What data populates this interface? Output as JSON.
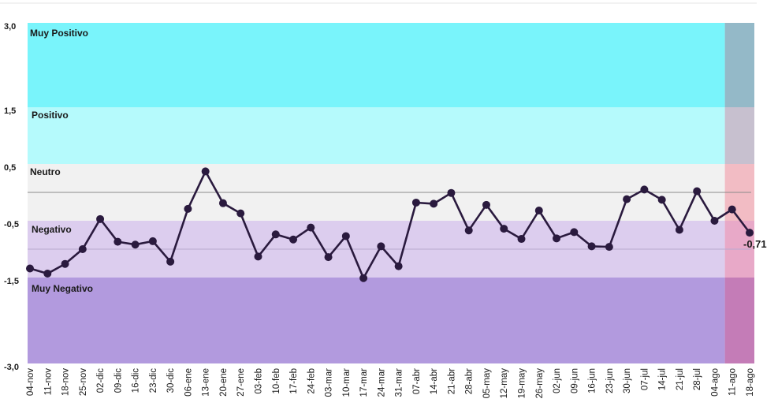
{
  "chart_data": {
    "type": "line",
    "y_ticks": [
      "3,0",
      "1,5",
      "0,5",
      "-0,5",
      "-1,5",
      "-3,0"
    ],
    "y_tick_values": [
      3.0,
      1.5,
      0.5,
      -0.5,
      -1.5,
      -3.0
    ],
    "bands": [
      {
        "name": "Muy Positivo",
        "from": 1.5,
        "to": 3.0,
        "color": "#79f4fb",
        "highlight_color": "#94b9c8"
      },
      {
        "name": "Positivo",
        "from": 0.5,
        "to": 1.5,
        "color": "#b5fafc",
        "highlight_color": "#c7c0cf"
      },
      {
        "name": "Neutro",
        "from": -0.5,
        "to": 0.5,
        "color": "#f1f1f1",
        "highlight_color": "#f2bcc4"
      },
      {
        "name": "Negativo",
        "from": -1.5,
        "to": -0.5,
        "color": "#dccdee",
        "highlight_color": "#e8a9c8"
      },
      {
        "name": "Muy Negativo",
        "from": -3.0,
        "to": -1.5,
        "color": "#b29ade",
        "highlight_color": "#c47cb7"
      }
    ],
    "reference_lines": [
      0.0,
      -1.0
    ],
    "highlight_from_category": "11-ago",
    "categories": [
      "04-nov",
      "11-nov",
      "18-nov",
      "25-nov",
      "02-dic",
      "09-dic",
      "16-dic",
      "23-dic",
      "30-dic",
      "06-ene",
      "13-ene",
      "20-ene",
      "27-ene",
      "03-feb",
      "10-feb",
      "17-feb",
      "24-feb",
      "03-mar",
      "10-mar",
      "17-mar",
      "24-mar",
      "31-mar",
      "07-abr",
      "14-abr",
      "21-abr",
      "28-abr",
      "05-may",
      "12-may",
      "19-may",
      "26-may",
      "02-jun",
      "09-jun",
      "16-jun",
      "23-jun",
      "30-jun",
      "07-jul",
      "14-jul",
      "21-jul",
      "28-jul",
      "04-ago",
      "11-ago",
      "18-ago"
    ],
    "values": [
      -1.34,
      -1.43,
      -1.26,
      -1.0,
      -0.47,
      -0.87,
      -0.92,
      -0.86,
      -1.22,
      -0.29,
      0.37,
      -0.19,
      -0.37,
      -1.13,
      -0.74,
      -0.83,
      -0.62,
      -1.14,
      -0.77,
      -1.51,
      -0.95,
      -1.3,
      -0.18,
      -0.2,
      -0.01,
      -0.67,
      -0.22,
      -0.64,
      -0.82,
      -0.32,
      -0.81,
      -0.7,
      -0.95,
      -0.96,
      -0.12,
      0.05,
      -0.13,
      -0.66,
      0.02,
      -0.5,
      -0.3,
      -0.71
    ],
    "last_value_label": "-0,71",
    "series_color": "#2a1a3e",
    "title": "",
    "xlabel": "",
    "ylabel": ""
  }
}
